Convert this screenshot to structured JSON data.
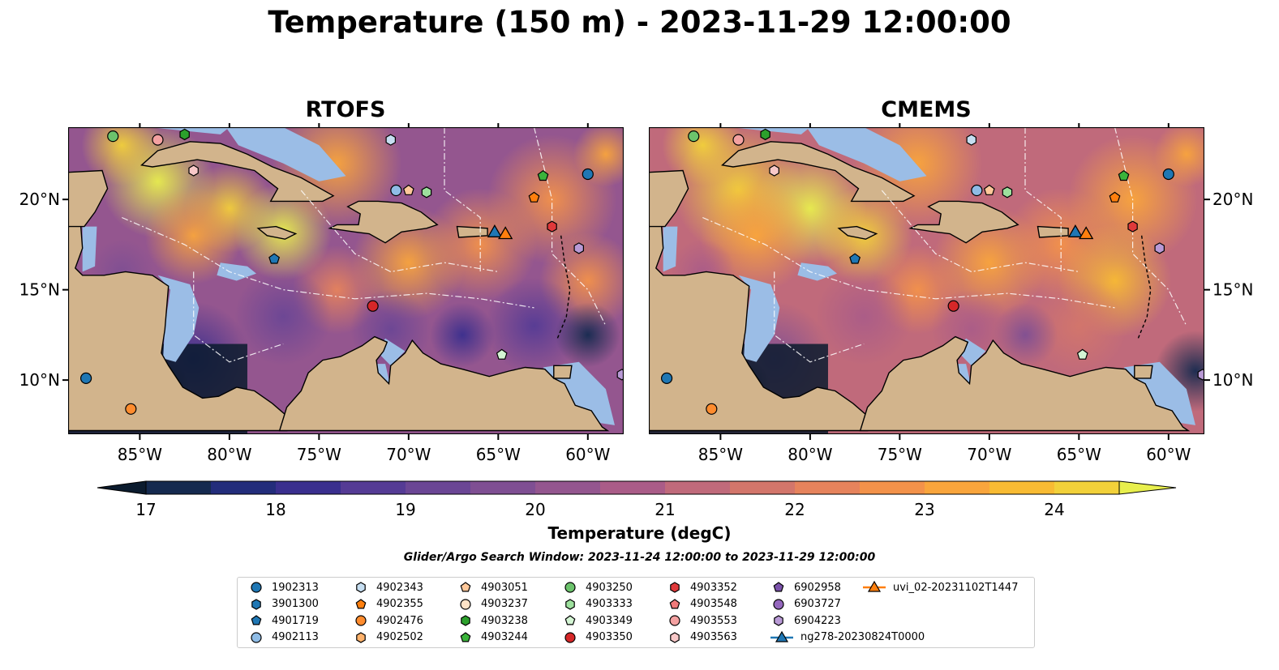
{
  "title": "Temperature (150 m) - 2023-11-29 12:00:00",
  "panels": [
    {
      "title": "RTOFS",
      "variant": "rtofs"
    },
    {
      "title": "CMEMS",
      "variant": "cmems"
    }
  ],
  "axes": {
    "lon_ticks": [
      "85°W",
      "80°W",
      "75°W",
      "70°W",
      "65°W",
      "60°W"
    ],
    "lon_values": [
      -85,
      -80,
      -75,
      -70,
      -65,
      -60
    ],
    "lat_ticks": [
      "20°N",
      "15°N",
      "10°N"
    ],
    "lat_values": [
      20,
      15,
      10
    ],
    "lon_range": [
      -89,
      -58
    ],
    "lat_range": [
      7,
      24
    ]
  },
  "colorbar": {
    "label": "Temperature (degC)",
    "ticks": [
      "17",
      "18",
      "19",
      "20",
      "21",
      "22",
      "23",
      "24"
    ],
    "min": 16.75,
    "max": 24.75,
    "step": 0.5,
    "extend": "both",
    "colormap": [
      "#0b1b2e",
      "#152a4f",
      "#232d7b",
      "#3a2f8e",
      "#553b95",
      "#6b4695",
      "#7f4f93",
      "#94568f",
      "#aa5c88",
      "#c06a7b",
      "#d3766b",
      "#e6835c",
      "#f3924a",
      "#f9a53c",
      "#f8bb33",
      "#f2d13a",
      "#e8ef4d"
    ]
  },
  "search_window": "Glider/Argo Search Window: 2023-11-24 12:00:00 to 2023-11-29 12:00:00",
  "legend": [
    {
      "label": "1902313",
      "marker": "circle",
      "color": "#1f77b4"
    },
    {
      "label": "3901300",
      "marker": "hexagon",
      "color": "#1f77b4"
    },
    {
      "label": "4901719",
      "marker": "pentagon",
      "color": "#1f77b4"
    },
    {
      "label": "4902113",
      "marker": "circle",
      "color": "#8fbce6"
    },
    {
      "label": "4902343",
      "marker": "hexagon",
      "color": "#c6def1"
    },
    {
      "label": "4902355",
      "marker": "pentagon",
      "color": "#ff7f0e"
    },
    {
      "label": "4902476",
      "marker": "circle",
      "color": "#ff8c2e"
    },
    {
      "label": "4902502",
      "marker": "hexagon",
      "color": "#ffb26b"
    },
    {
      "label": "4903051",
      "marker": "pentagon",
      "color": "#ffc89a"
    },
    {
      "label": "4903237",
      "marker": "circle",
      "color": "#ffe3c7"
    },
    {
      "label": "4903238",
      "marker": "hexagon",
      "color": "#2ca02c"
    },
    {
      "label": "4903244",
      "marker": "pentagon",
      "color": "#3bb33b"
    },
    {
      "label": "4903250",
      "marker": "circle",
      "color": "#6cc36c"
    },
    {
      "label": "4903333",
      "marker": "hexagon",
      "color": "#9de09d"
    },
    {
      "label": "4903349",
      "marker": "pentagon",
      "color": "#d4f5d4"
    },
    {
      "label": "4903350",
      "marker": "circle",
      "color": "#d62728"
    },
    {
      "label": "4903352",
      "marker": "hexagon",
      "color": "#e0393a"
    },
    {
      "label": "4903548",
      "marker": "pentagon",
      "color": "#f07a7a"
    },
    {
      "label": "4903553",
      "marker": "circle",
      "color": "#f4a1a1"
    },
    {
      "label": "4903563",
      "marker": "hexagon",
      "color": "#f8c8c8"
    },
    {
      "label": "6902958",
      "marker": "pentagon",
      "color": "#7b52ab"
    },
    {
      "label": "6903727",
      "marker": "circle",
      "color": "#9467bd"
    },
    {
      "label": "6904223",
      "marker": "hexagon",
      "color": "#b99ad6"
    },
    {
      "label": "ng278-20230824T0000",
      "marker": "triangle-line",
      "color": "#1f77b4"
    },
    {
      "label": "uvi_02-20231102T1447",
      "marker": "triangle-line",
      "color": "#ff7f0e"
    }
  ],
  "floats": [
    {
      "lon": -86.5,
      "lat": 23.5,
      "marker": "circle",
      "color": "#6cc36c"
    },
    {
      "lon": -84.0,
      "lat": 23.3,
      "marker": "circle",
      "color": "#f4a1a1"
    },
    {
      "lon": -82.5,
      "lat": 23.6,
      "marker": "hexagon",
      "color": "#2ca02c"
    },
    {
      "lon": -82.0,
      "lat": 21.6,
      "marker": "hexagon",
      "color": "#f8c8c8"
    },
    {
      "lon": -71.0,
      "lat": 23.3,
      "marker": "hexagon",
      "color": "#c6def1"
    },
    {
      "lon": -70.7,
      "lat": 20.5,
      "marker": "circle",
      "color": "#8fbce6"
    },
    {
      "lon": -70.0,
      "lat": 20.5,
      "marker": "pentagon",
      "color": "#ffc89a"
    },
    {
      "lon": -69.0,
      "lat": 20.4,
      "marker": "hexagon",
      "color": "#9de09d"
    },
    {
      "lon": -62.5,
      "lat": 21.3,
      "marker": "pentagon",
      "color": "#3bb33b"
    },
    {
      "lon": -63.0,
      "lat": 20.1,
      "marker": "pentagon",
      "color": "#ff7f0e"
    },
    {
      "lon": -60.0,
      "lat": 21.4,
      "marker": "circle",
      "color": "#1f77b4"
    },
    {
      "lon": -62.0,
      "lat": 18.5,
      "marker": "hexagon",
      "color": "#e0393a"
    },
    {
      "lon": -60.5,
      "lat": 17.3,
      "marker": "hexagon",
      "color": "#b99ad6"
    },
    {
      "lon": -77.5,
      "lat": 16.7,
      "marker": "pentagon",
      "color": "#1f77b4"
    },
    {
      "lon": -72.0,
      "lat": 14.1,
      "marker": "circle",
      "color": "#d62728"
    },
    {
      "lon": -64.8,
      "lat": 11.4,
      "marker": "pentagon",
      "color": "#d4f5d4"
    },
    {
      "lon": -88.0,
      "lat": 10.1,
      "marker": "circle",
      "color": "#1f77b4"
    },
    {
      "lon": -85.5,
      "lat": 8.4,
      "marker": "circle",
      "color": "#ff8c2e"
    },
    {
      "lon": -58.1,
      "lat": 10.3,
      "marker": "hexagon",
      "color": "#b99ad6"
    }
  ],
  "gliders": [
    {
      "lon": -65.2,
      "lat": 18.2,
      "color": "#1f77b4"
    },
    {
      "lon": -64.6,
      "lat": 18.1,
      "color": "#ff7f0e"
    }
  ]
}
